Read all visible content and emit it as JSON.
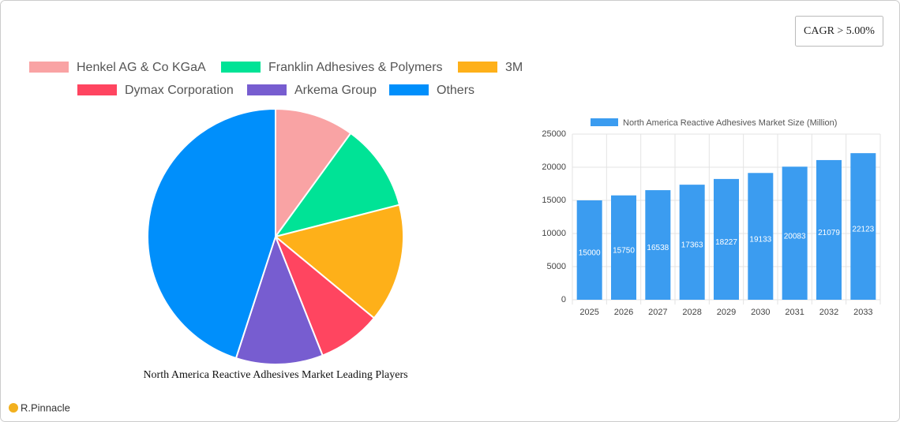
{
  "badge": "CAGR > 5.00%",
  "brand": "R.Pinnacle",
  "chart_data": [
    {
      "type": "pie",
      "title": "North America Reactive Adhesives Market Leading Players",
      "categories": [
        "Henkel AG & Co  KGaA",
        "Franklin Adhesives & Polymers",
        "3M",
        "Dymax Corporation",
        "Arkema Group",
        "Others"
      ],
      "values": [
        10,
        11,
        15,
        8,
        11,
        45
      ],
      "colors": [
        "#f9a3a4",
        "#00e396",
        "#feb019",
        "#ff4560",
        "#775dd0",
        "#008ffb"
      ]
    },
    {
      "type": "bar",
      "categories": [
        "2025",
        "2026",
        "2027",
        "2028",
        "2029",
        "2030",
        "2031",
        "2032",
        "2033"
      ],
      "series": [
        {
          "name": "North America Reactive Adhesives Market Size (Million)",
          "color": "#3b9cf0",
          "values": [
            15000,
            15750,
            16538,
            17363,
            18227,
            19133,
            20083,
            21079,
            22123
          ]
        }
      ],
      "ylim": [
        0,
        25000
      ],
      "yticks": [
        0,
        5000,
        10000,
        15000,
        20000,
        25000
      ],
      "grid": true
    }
  ]
}
